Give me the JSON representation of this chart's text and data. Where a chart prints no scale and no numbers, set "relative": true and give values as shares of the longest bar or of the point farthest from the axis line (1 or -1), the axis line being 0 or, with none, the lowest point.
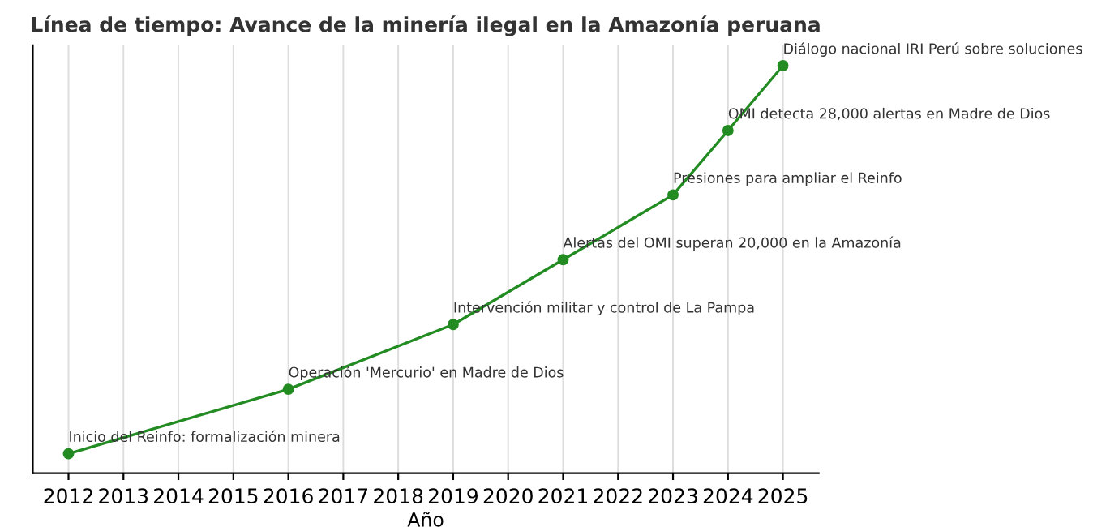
{
  "chart_data": {
    "type": "line",
    "title": "Línea de tiempo: Avance de la minería ilegal en la Amazonía peruana",
    "xlabel": "Año",
    "relative": true,
    "x": [
      2012,
      2016,
      2019,
      2021,
      2023,
      2024,
      2025
    ],
    "series": [
      {
        "color": "#228b22",
        "values": [
          0.048,
          0.206,
          0.365,
          0.524,
          0.683,
          0.841,
          1
        ]
      }
    ],
    "xlim": [
      2011.35,
      2025.65
    ],
    "xticks": [
      2012,
      2013,
      2014,
      2015,
      2016,
      2017,
      2018,
      2019,
      2020,
      2021,
      2022,
      2023,
      2024,
      2025
    ],
    "grid": "x",
    "marker": "circle",
    "line_style": "solid",
    "legend": false,
    "annotations": [
      {
        "text": "Inicio del Reinfo: formalización minera",
        "x": 2012,
        "y": 0.048
      },
      {
        "text": "Operación 'Mercurio' en Madre de Dios",
        "x": 2016,
        "y": 0.206
      },
      {
        "text": "Intervención militar y control de La Pampa",
        "x": 2019,
        "y": 0.365
      },
      {
        "text": "Alertas del OMI superan 20,000 en la Amazonía",
        "x": 2021,
        "y": 0.524
      },
      {
        "text": "Presiones para ampliar el Reinfo",
        "x": 2023,
        "y": 0.683
      },
      {
        "text": "OMI detecta 28,000 alertas en Madre de Dios",
        "x": 2024,
        "y": 0.841
      },
      {
        "text": "Diálogo nacional IRI Perú sobre soluciones",
        "x": 2025,
        "y": 1
      }
    ]
  }
}
